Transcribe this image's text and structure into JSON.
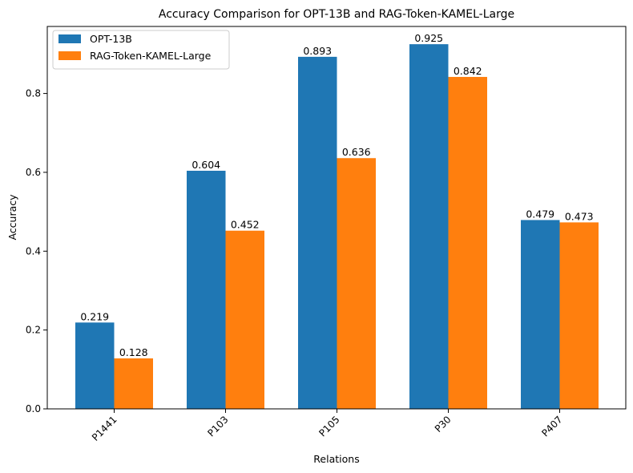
{
  "chart_data": {
    "type": "bar",
    "title": "Accuracy Comparison for OPT-13B and RAG-Token-KAMEL-Large",
    "xlabel": "Relations",
    "ylabel": "Accuracy",
    "categories": [
      "P1441",
      "P103",
      "P105",
      "P30",
      "P407"
    ],
    "series": [
      {
        "name": "OPT-13B",
        "color": "#1f77b4",
        "values": [
          0.219,
          0.604,
          0.893,
          0.925,
          0.479
        ]
      },
      {
        "name": "RAG-Token-KAMEL-Large",
        "color": "#ff7f0e",
        "values": [
          0.128,
          0.452,
          0.636,
          0.842,
          0.473
        ]
      }
    ],
    "ylim": [
      0,
      0.97
    ],
    "yticks": [
      "0.0",
      "0.2",
      "0.4",
      "0.6",
      "0.8"
    ],
    "grid": false,
    "legend_position": "top-left"
  }
}
